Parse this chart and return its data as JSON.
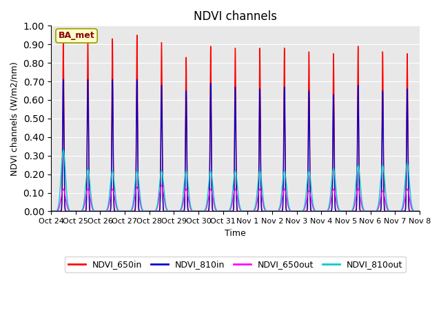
{
  "title": "NDVI channels",
  "ylabel": "NDVI channels (W/m2/nm)",
  "xlabel": "Time",
  "ylim": [
    0.0,
    1.0
  ],
  "yticks": [
    0.0,
    0.1,
    0.2,
    0.3,
    0.4,
    0.5,
    0.6,
    0.7,
    0.8,
    0.9,
    1.0
  ],
  "annotation_text": "BA_met",
  "colors": {
    "NDVI_650in": "#FF0000",
    "NDVI_810in": "#0000CC",
    "NDVI_650out": "#FF00FF",
    "NDVI_810out": "#00CCCC"
  },
  "x_tick_labels": [
    "Oct 24",
    "Oct 25",
    "Oct 26",
    "Oct 27",
    "Oct 28",
    "Oct 29",
    "Oct 30",
    "Oct 31",
    "Nov 1",
    "Nov 2",
    "Nov 3",
    "Nov 4",
    "Nov 5",
    "Nov 6",
    "Nov 7",
    "Nov 8"
  ],
  "num_days": 15,
  "peaks_650in": [
    0.93,
    0.94,
    0.93,
    0.95,
    0.91,
    0.83,
    0.89,
    0.88,
    0.88,
    0.88,
    0.86,
    0.85,
    0.89,
    0.86,
    0.85
  ],
  "peaks_810in": [
    0.71,
    0.71,
    0.71,
    0.71,
    0.68,
    0.65,
    0.69,
    0.67,
    0.66,
    0.67,
    0.65,
    0.63,
    0.68,
    0.65,
    0.66
  ],
  "peaks_650out": [
    0.12,
    0.12,
    0.12,
    0.13,
    0.14,
    0.12,
    0.12,
    0.12,
    0.12,
    0.12,
    0.11,
    0.12,
    0.12,
    0.11,
    0.12
  ],
  "peaks_810out": [
    0.33,
    0.23,
    0.22,
    0.22,
    0.22,
    0.22,
    0.22,
    0.22,
    0.22,
    0.22,
    0.22,
    0.23,
    0.25,
    0.25,
    0.26
  ],
  "plot_bg_color": "#E8E8E8",
  "fig_bg_color": "#FFFFFF",
  "line_width": 1.0,
  "title_fontsize": 12,
  "axis_fontsize": 9,
  "tick_fontsize": 8
}
